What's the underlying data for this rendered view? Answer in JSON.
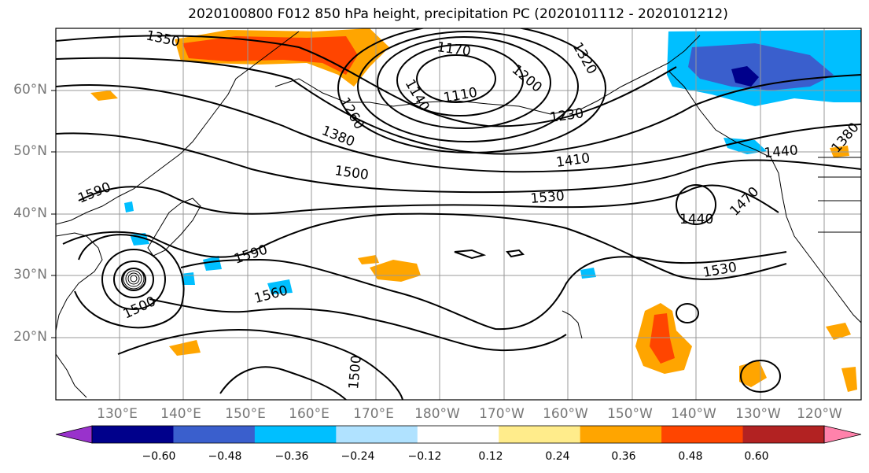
{
  "title": "2020100800 F012 850 hPa height, precipitation PC (2020101112 - 2020101212)",
  "latitude_labels": [
    "60°N",
    "50°N",
    "40°N",
    "30°N",
    "20°N"
  ],
  "longitude_labels": [
    "130°E",
    "140°E",
    "150°E",
    "160°E",
    "170°E",
    "180°W",
    "170°W",
    "160°W",
    "150°W",
    "140°W",
    "130°W",
    "120°W"
  ],
  "contour_labels": [
    "1350",
    "1170",
    "1200",
    "1320",
    "1140",
    "1110",
    "1260",
    "1230",
    "1380",
    "1500",
    "1410",
    "1590",
    "1530",
    "1440",
    "1470",
    "1380",
    "1440",
    "1590",
    "1560",
    "1530",
    "1500",
    "1500"
  ],
  "colorbar": {
    "ticks": [
      "−0.60",
      "−0.48",
      "−0.36",
      "−0.24",
      "−0.12",
      "0.12",
      "0.24",
      "0.36",
      "0.48",
      "0.60"
    ],
    "colors": [
      "#9932cc",
      "#00008b",
      "#3a5fcd",
      "#00bfff",
      "#b0e2ff",
      "#ffffff",
      "#ffec8b",
      "#ffa500",
      "#ff4500",
      "#b22222",
      "#ff82ab"
    ]
  }
}
